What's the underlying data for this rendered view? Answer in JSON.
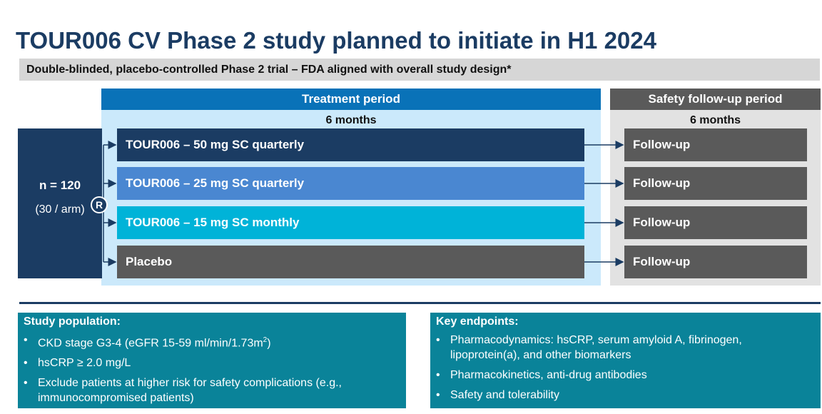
{
  "title": "TOUR006 CV Phase 2 study planned to initiate in H1 2024",
  "subtitle": "Double-blinded, placebo-controlled Phase 2 trial – FDA aligned with overall study design*",
  "treatment": {
    "header": "Treatment period",
    "duration": "6 months"
  },
  "safety": {
    "header": "Safety follow-up period",
    "duration": "6 months"
  },
  "population": {
    "n": "n = 120",
    "per_arm": "(30 / arm)"
  },
  "randomization_label": "R",
  "arms": [
    {
      "label": "TOUR006 – 50 mg SC quarterly",
      "color": "#1b3c63"
    },
    {
      "label": "TOUR006 – 25 mg SC quarterly",
      "color": "#4a87d1"
    },
    {
      "label": "TOUR006 – 15 mg SC monthly",
      "color": "#00b3d8"
    },
    {
      "label": "Placebo",
      "color": "#5a5a5a"
    }
  ],
  "followups": [
    "Follow-up",
    "Follow-up",
    "Follow-up",
    "Follow-up"
  ],
  "study_population": {
    "title": "Study population:",
    "bullet": "•",
    "item1_pre": "CKD stage G3-4 (eGFR 15-59 ml/min/1.73m",
    "item1_sup": "2",
    "item1_post": ")",
    "item2": "hsCRP ≥ 2.0 mg/L",
    "item3": "Exclude patients at higher risk for safety complications (e.g., immunocompromised patients)"
  },
  "key_endpoints": {
    "title": "Key endpoints:",
    "bullet": "•",
    "items": [
      "Pharmacodynamics: hsCRP, serum amyloid A, fibrinogen, lipoprotein(a), and other biomarkers",
      "Pharmacokinetics, anti-drug antibodies",
      "Safety and tolerability"
    ]
  },
  "colors": {
    "navy": "#1b3c63",
    "treatment_blue": "#0972b8",
    "panel_light": "#cbe9fb",
    "teal": "#0a8399",
    "gray": "#5a5a5a"
  }
}
